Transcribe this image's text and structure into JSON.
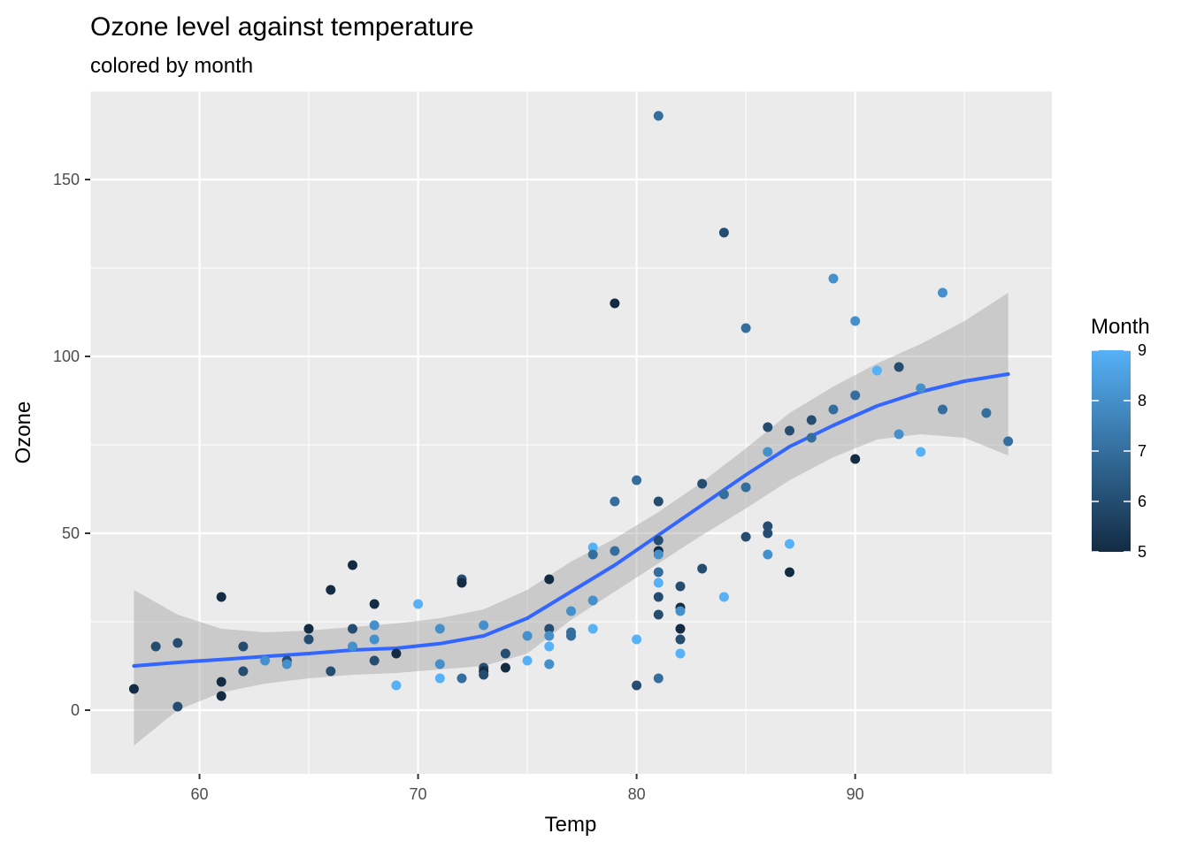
{
  "chart_data": {
    "type": "scatter",
    "title": "Ozone level against temperature",
    "subtitle": "colored by month",
    "xlabel": "Temp",
    "ylabel": "Ozone",
    "xlim": [
      55,
      99
    ],
    "ylim": [
      -18,
      175
    ],
    "x_ticks": [
      60,
      70,
      80,
      90
    ],
    "y_ticks": [
      0,
      50,
      100,
      150
    ],
    "x_tick_labels": [
      "60",
      "70",
      "80",
      "90"
    ],
    "y_tick_labels": [
      "0",
      "50",
      "100",
      "150"
    ],
    "grid": true,
    "panel_background": "#ebebeb",
    "legend": {
      "title": "Month",
      "position": "right",
      "type": "colorbar",
      "min": 5,
      "max": 9,
      "ticks": [
        5,
        6,
        7,
        8,
        9
      ],
      "tick_labels": [
        "5",
        "6",
        "7",
        "8",
        "9"
      ],
      "low_color": "#132b43",
      "high_color": "#56b1f7"
    },
    "points": [
      {
        "x": 57,
        "y": 6,
        "month": 5
      },
      {
        "x": 58,
        "y": 18,
        "month": 6
      },
      {
        "x": 59,
        "y": 1,
        "month": 6
      },
      {
        "x": 59,
        "y": 19,
        "month": 6
      },
      {
        "x": 61,
        "y": 32,
        "month": 5
      },
      {
        "x": 61,
        "y": 8,
        "month": 5
      },
      {
        "x": 61,
        "y": 4,
        "month": 5
      },
      {
        "x": 62,
        "y": 18,
        "month": 6
      },
      {
        "x": 62,
        "y": 11,
        "month": 6
      },
      {
        "x": 63,
        "y": 14,
        "month": 8
      },
      {
        "x": 64,
        "y": 14,
        "month": 6
      },
      {
        "x": 64,
        "y": 13,
        "month": 8
      },
      {
        "x": 65,
        "y": 23,
        "month": 5
      },
      {
        "x": 65,
        "y": 20,
        "month": 6
      },
      {
        "x": 66,
        "y": 34,
        "month": 5
      },
      {
        "x": 66,
        "y": 11,
        "month": 6
      },
      {
        "x": 67,
        "y": 41,
        "month": 5
      },
      {
        "x": 67,
        "y": 23,
        "month": 6
      },
      {
        "x": 67,
        "y": 18,
        "month": 8
      },
      {
        "x": 68,
        "y": 30,
        "month": 5
      },
      {
        "x": 68,
        "y": 24,
        "month": 8
      },
      {
        "x": 68,
        "y": 20,
        "month": 8
      },
      {
        "x": 68,
        "y": 14,
        "month": 6
      },
      {
        "x": 69,
        "y": 16,
        "month": 5
      },
      {
        "x": 69,
        "y": 7,
        "month": 9
      },
      {
        "x": 70,
        "y": 30,
        "month": 9
      },
      {
        "x": 71,
        "y": 23,
        "month": 8
      },
      {
        "x": 71,
        "y": 13,
        "month": 8
      },
      {
        "x": 71,
        "y": 9,
        "month": 9
      },
      {
        "x": 72,
        "y": 37,
        "month": 6
      },
      {
        "x": 72,
        "y": 36,
        "month": 5
      },
      {
        "x": 72,
        "y": 9,
        "month": 7
      },
      {
        "x": 73,
        "y": 24,
        "month": 8
      },
      {
        "x": 73,
        "y": 12,
        "month": 6
      },
      {
        "x": 73,
        "y": 11,
        "month": 5
      },
      {
        "x": 73,
        "y": 10,
        "month": 6
      },
      {
        "x": 74,
        "y": 16,
        "month": 6
      },
      {
        "x": 74,
        "y": 12,
        "month": 5
      },
      {
        "x": 75,
        "y": 21,
        "month": 8
      },
      {
        "x": 75,
        "y": 14,
        "month": 9
      },
      {
        "x": 76,
        "y": 37,
        "month": 5
      },
      {
        "x": 76,
        "y": 23,
        "month": 6
      },
      {
        "x": 76,
        "y": 21,
        "month": 8
      },
      {
        "x": 76,
        "y": 18,
        "month": 9
      },
      {
        "x": 76,
        "y": 13,
        "month": 9
      },
      {
        "x": 76,
        "y": 13,
        "month": 8
      },
      {
        "x": 77,
        "y": 28,
        "month": 8
      },
      {
        "x": 77,
        "y": 22,
        "month": 7
      },
      {
        "x": 77,
        "y": 21,
        "month": 7
      },
      {
        "x": 78,
        "y": 46,
        "month": 9
      },
      {
        "x": 78,
        "y": 44,
        "month": 7
      },
      {
        "x": 78,
        "y": 31,
        "month": 8
      },
      {
        "x": 78,
        "y": 23,
        "month": 9
      },
      {
        "x": 79,
        "y": 115,
        "month": 5
      },
      {
        "x": 79,
        "y": 59,
        "month": 7
      },
      {
        "x": 79,
        "y": 45,
        "month": 7
      },
      {
        "x": 80,
        "y": 65,
        "month": 7
      },
      {
        "x": 80,
        "y": 20,
        "month": 9
      },
      {
        "x": 80,
        "y": 7,
        "month": 6
      },
      {
        "x": 81,
        "y": 168,
        "month": 7
      },
      {
        "x": 81,
        "y": 59,
        "month": 6
      },
      {
        "x": 81,
        "y": 48,
        "month": 6
      },
      {
        "x": 81,
        "y": 45,
        "month": 5
      },
      {
        "x": 81,
        "y": 44,
        "month": 8
      },
      {
        "x": 81,
        "y": 39,
        "month": 7
      },
      {
        "x": 81,
        "y": 36,
        "month": 9
      },
      {
        "x": 81,
        "y": 32,
        "month": 6
      },
      {
        "x": 81,
        "y": 27,
        "month": 6
      },
      {
        "x": 81,
        "y": 9,
        "month": 7
      },
      {
        "x": 82,
        "y": 35,
        "month": 6
      },
      {
        "x": 82,
        "y": 29,
        "month": 5
      },
      {
        "x": 82,
        "y": 28,
        "month": 8
      },
      {
        "x": 82,
        "y": 23,
        "month": 5
      },
      {
        "x": 82,
        "y": 20,
        "month": 6
      },
      {
        "x": 82,
        "y": 16,
        "month": 9
      },
      {
        "x": 83,
        "y": 64,
        "month": 6
      },
      {
        "x": 83,
        "y": 40,
        "month": 6
      },
      {
        "x": 84,
        "y": 135,
        "month": 6
      },
      {
        "x": 84,
        "y": 61,
        "month": 7
      },
      {
        "x": 84,
        "y": 32,
        "month": 9
      },
      {
        "x": 85,
        "y": 108,
        "month": 7
      },
      {
        "x": 85,
        "y": 63,
        "month": 7
      },
      {
        "x": 85,
        "y": 49,
        "month": 6
      },
      {
        "x": 86,
        "y": 80,
        "month": 6
      },
      {
        "x": 86,
        "y": 73,
        "month": 8
      },
      {
        "x": 86,
        "y": 52,
        "month": 6
      },
      {
        "x": 86,
        "y": 50,
        "month": 6
      },
      {
        "x": 86,
        "y": 44,
        "month": 8
      },
      {
        "x": 87,
        "y": 79,
        "month": 6
      },
      {
        "x": 87,
        "y": 47,
        "month": 9
      },
      {
        "x": 87,
        "y": 39,
        "month": 5
      },
      {
        "x": 88,
        "y": 82,
        "month": 6
      },
      {
        "x": 88,
        "y": 77,
        "month": 7
      },
      {
        "x": 89,
        "y": 122,
        "month": 8
      },
      {
        "x": 89,
        "y": 85,
        "month": 7
      },
      {
        "x": 90,
        "y": 110,
        "month": 8
      },
      {
        "x": 90,
        "y": 89,
        "month": 7
      },
      {
        "x": 90,
        "y": 71,
        "month": 5
      },
      {
        "x": 91,
        "y": 96,
        "month": 9
      },
      {
        "x": 92,
        "y": 97,
        "month": 6
      },
      {
        "x": 92,
        "y": 78,
        "month": 8
      },
      {
        "x": 93,
        "y": 91,
        "month": 8
      },
      {
        "x": 93,
        "y": 73,
        "month": 9
      },
      {
        "x": 94,
        "y": 118,
        "month": 8
      },
      {
        "x": 94,
        "y": 85,
        "month": 7
      },
      {
        "x": 96,
        "y": 84,
        "month": 7
      },
      {
        "x": 97,
        "y": 76,
        "month": 7
      }
    ],
    "smooth": {
      "type": "line",
      "color": "#3366ff",
      "band_color": "#999999",
      "x": [
        57,
        59,
        61,
        63,
        65,
        67,
        69,
        71,
        73,
        75,
        77,
        79,
        81,
        83,
        85,
        87,
        89,
        91,
        93,
        95,
        97
      ],
      "y": [
        12.5,
        13.5,
        14.3,
        15.2,
        16.0,
        17.0,
        17.5,
        18.8,
        21.0,
        26.0,
        33.5,
        41.0,
        49.5,
        58.0,
        66.5,
        74.5,
        80.5,
        86.0,
        90.0,
        93.0,
        95.0
      ],
      "lower": [
        -10,
        0,
        5,
        7.5,
        9,
        10,
        10.5,
        11.5,
        12.5,
        16,
        25.5,
        33.5,
        41.5,
        49.5,
        57,
        65,
        71.5,
        76.5,
        78,
        77,
        72
      ],
      "upper": [
        34,
        27,
        23,
        22,
        22.5,
        23.5,
        24.5,
        26,
        28.5,
        34,
        42,
        48.5,
        56,
        64.5,
        74,
        84,
        91.5,
        98,
        103.5,
        110,
        118
      ]
    }
  }
}
